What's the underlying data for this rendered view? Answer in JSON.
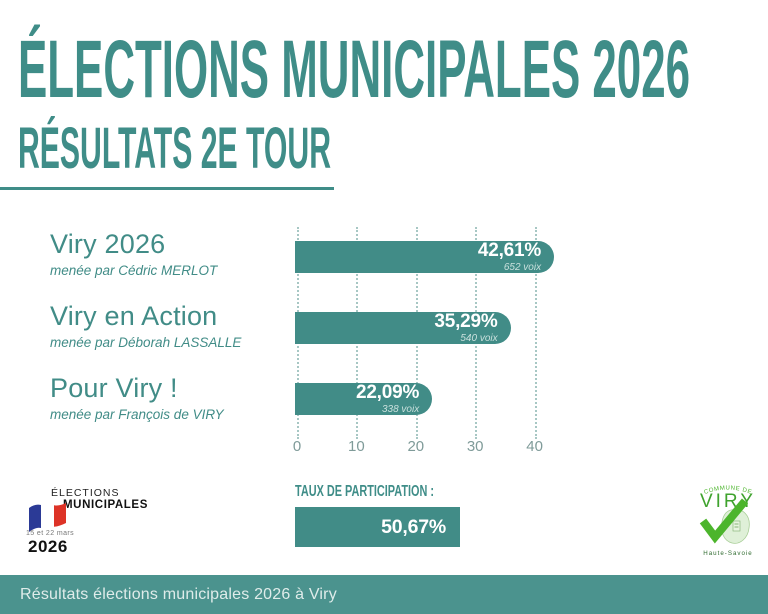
{
  "header": {
    "title": "ÉLECTIONS MUNICIPALES 2026",
    "subtitle": "RÉSULTATS 2E TOUR"
  },
  "chart_data": {
    "type": "bar",
    "orientation": "horizontal",
    "categories": [
      "Viry 2026",
      "Viry en Action",
      "Pour Viry !"
    ],
    "leaders": [
      "menée par Cédric MERLOT",
      "menée par Déborah LASSALLE",
      "menée par François de VIRY"
    ],
    "values": [
      42.61,
      35.29,
      22.09
    ],
    "value_labels": [
      "42,61%",
      "35,29%",
      "22,09%"
    ],
    "votes": [
      652,
      540,
      338
    ],
    "votes_labels": [
      "652 voix",
      "540 voix",
      "338 voix"
    ],
    "x_ticks": [
      0,
      10,
      20,
      30,
      40
    ],
    "xlim": [
      0,
      40
    ],
    "grid": "dotted-vertical",
    "bar_color": "#418C87",
    "legend": "none"
  },
  "participation": {
    "label": "TAUX DE PARTICIPATION :",
    "value": 50.67,
    "value_label": "50,67%"
  },
  "ministry_logo": {
    "line1": "ÉLECTIONS",
    "line2": "MUNICIPALES",
    "dates": "15 et 22 mars",
    "year": "2026"
  },
  "commune_logo": {
    "top": "COMMUNE DE",
    "name": "VIRY",
    "bottom": "Haute-Savoie"
  },
  "footer": {
    "text": "Résultats élections municipales 2026 à Viry"
  },
  "colors": {
    "teal": "#3F8D88",
    "bar_teal": "#418C87",
    "footer_teal": "#4B938E",
    "grid_dots": "#A7C7C4",
    "axis_label": "#7F9B99",
    "voix_text": "#C9E0DD",
    "logo_green": "#4CB52C",
    "flag_blue": "#2B3A96",
    "flag_red": "#DD3327"
  }
}
